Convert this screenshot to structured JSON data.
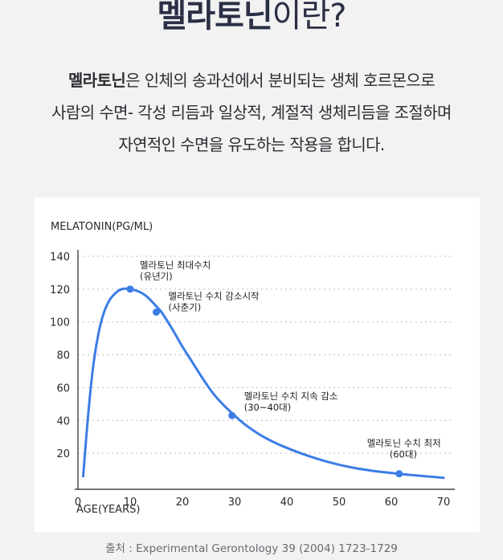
{
  "heading": {
    "strong": "멜라토닌",
    "light": "이란?"
  },
  "description": {
    "line1_bold": "멜라토닌",
    "line1_rest": "은 인체의 송과선에서 분비되는 생체 호르몬으로",
    "line2": "사람의 수면- 각성 리듬과 일상적, 계절적 생체리듬을 조절하며",
    "line3": "자연적인 수면을 유도하는 작용을 합니다."
  },
  "source": "출처 : Experimental Gerontology 39 (2004) 1723-1729",
  "colors": {
    "curve": "#3c7de6",
    "grid": "#bdbdbd",
    "axis": "#222222"
  },
  "chart_data": {
    "type": "line",
    "ylabel": "MELATONIN(PG/ML)",
    "xlabel": "AGE(YEARS)",
    "xlim": [
      0,
      70
    ],
    "ylim": [
      0,
      140
    ],
    "xticks": [
      0,
      10,
      20,
      30,
      40,
      50,
      60,
      70
    ],
    "yticks": [
      20,
      40,
      60,
      80,
      100,
      120,
      140
    ],
    "grid": "horizontal dotted",
    "series": [
      {
        "x": [
          1,
          2,
          3,
          4,
          5,
          6,
          7,
          8,
          9,
          10,
          11,
          12,
          13,
          14,
          15,
          16,
          18,
          20,
          22,
          24,
          26,
          28,
          30,
          32,
          35,
          38,
          41,
          44,
          47,
          50,
          53,
          56,
          59,
          62,
          65,
          68,
          70
        ],
        "y": [
          6,
          45,
          75,
          94,
          106,
          113,
          117,
          119.5,
          120.3,
          120,
          119.3,
          118,
          116,
          113,
          109.5,
          106,
          96,
          85,
          75,
          65,
          56,
          49,
          43,
          37.5,
          31,
          26,
          22,
          18.5,
          15.5,
          13,
          11,
          9.5,
          8.3,
          7.3,
          6.4,
          5.6,
          5
        ]
      }
    ],
    "annotations": [
      {
        "x": 10,
        "y": 120,
        "line1": "멜라토닌 최대수치",
        "line2": "(유년기)"
      },
      {
        "x": 15,
        "y": 106,
        "line1": "멜라토닌 수치 감소시작",
        "line2": "(사춘기)"
      },
      {
        "x": 29.5,
        "y": 43,
        "line1": "멜라토닌 수치 지속 감소",
        "line2": "(30~40대)"
      },
      {
        "x": 61.5,
        "y": 7.5,
        "line1": "멜라토닌 수치 최저",
        "line2": "(60대)"
      }
    ]
  }
}
